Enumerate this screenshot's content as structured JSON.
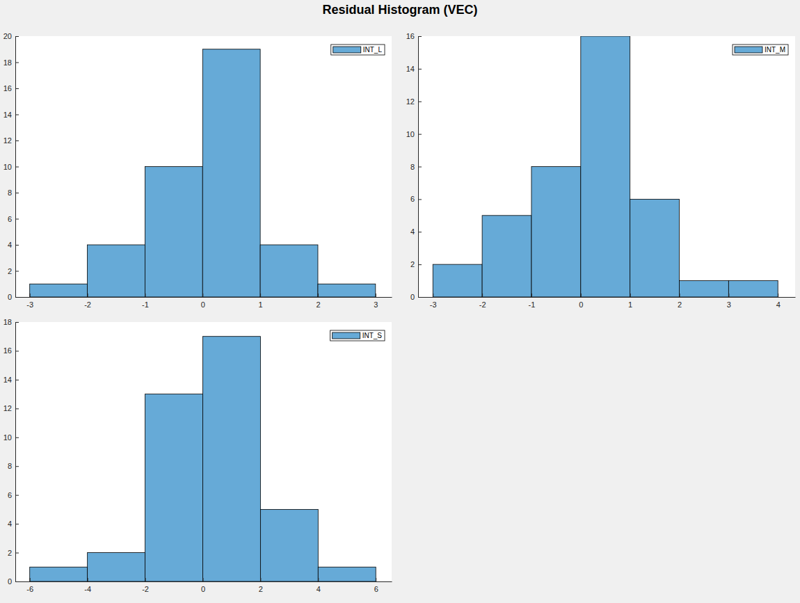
{
  "title": "Residual Histogram (VEC)",
  "chart_data": [
    {
      "type": "histogram",
      "bins": [
        -3,
        -2,
        -1,
        0,
        1,
        2,
        3
      ],
      "series": [
        {
          "name": "INT_L",
          "color": "#66aad7",
          "values": [
            1,
            4,
            10,
            19,
            4,
            1
          ]
        }
      ],
      "xlim": [
        -3.25,
        3.28
      ],
      "xticks": [
        -3,
        -2,
        -1,
        0,
        1,
        2,
        3
      ],
      "ylim": [
        0,
        20
      ],
      "yticks": [
        0,
        2,
        4,
        6,
        8,
        10,
        12,
        14,
        16,
        18,
        20
      ],
      "grid": false,
      "legend": "top-right"
    },
    {
      "type": "histogram",
      "bins": [
        -3,
        -2,
        -1,
        0,
        1,
        2,
        3,
        4
      ],
      "series": [
        {
          "name": "INT_M",
          "color": "#66aad7",
          "values": [
            2,
            5,
            8,
            16,
            6,
            1,
            1
          ]
        }
      ],
      "xlim": [
        -3.3,
        4.35
      ],
      "xticks": [
        -3,
        -2,
        -1,
        0,
        1,
        2,
        3,
        4
      ],
      "ylim": [
        0,
        16
      ],
      "yticks": [
        0,
        2,
        4,
        6,
        8,
        10,
        12,
        14,
        16
      ],
      "grid": false,
      "legend": "top-right"
    },
    {
      "type": "histogram",
      "bins": [
        -6,
        -4,
        -2,
        0,
        2,
        4,
        6
      ],
      "series": [
        {
          "name": "INT_S",
          "color": "#66aad7",
          "values": [
            1,
            2,
            13,
            17,
            5,
            1
          ]
        }
      ],
      "xlim": [
        -6.5,
        6.55
      ],
      "xticks": [
        -6,
        -4,
        -2,
        0,
        2,
        4,
        6
      ],
      "ylim": [
        0,
        18
      ],
      "yticks": [
        0,
        2,
        4,
        6,
        8,
        10,
        12,
        14,
        16,
        18
      ],
      "grid": false,
      "legend": "top-right"
    }
  ]
}
